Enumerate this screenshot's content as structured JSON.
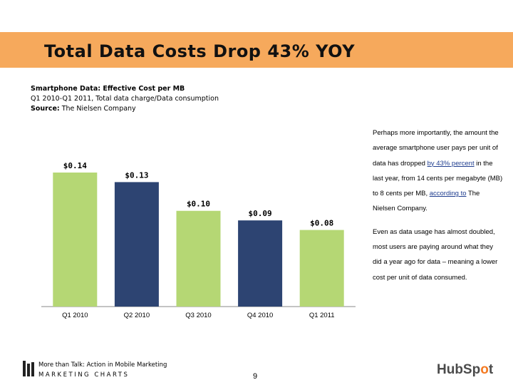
{
  "slide": {
    "title": "Total Data Costs Drop 43% YOY",
    "page_number": "9"
  },
  "meta": {
    "heading": "Smartphone Data: Effective Cost per MB",
    "subheading": "Q1 2010-Q1 2011, Total data charge/Data consumption",
    "source_label": "Source:",
    "source_value": "The Nielsen Company"
  },
  "chart_data": {
    "type": "bar",
    "title": "",
    "xlabel": "",
    "ylabel": "",
    "categories": [
      "Q1 2010",
      "Q2 2010",
      "Q3 2010",
      "Q4 2010",
      "Q1 2011"
    ],
    "values": [
      0.14,
      0.13,
      0.1,
      0.09,
      0.08
    ],
    "data_labels": [
      "$0.14",
      "$0.13",
      "$0.10",
      "$0.09",
      "$0.08"
    ],
    "bar_colors": [
      "#b5d774",
      "#2d4472",
      "#b5d774",
      "#2d4472",
      "#b5d774"
    ],
    "ylim": [
      0,
      0.14
    ],
    "grid": false,
    "legend": "none"
  },
  "side_text": {
    "p1_a": "Perhaps more importantly, the amount the average smartphone user pays per unit of data has dropped ",
    "p1_link1": "by 43% percent",
    "p1_b": " in the last year, from 14 cents per megabyte (MB) to 8 cents per MB, ",
    "p1_link2": "according to",
    "p1_c": " The Nielsen Company.",
    "p2": "Even as data usage has almost doubled, most users are paying around what they did a year ago for data – meaning a lower cost per unit of data consumed."
  },
  "footer": {
    "line1": "More than Talk: Action in Mobile Marketing",
    "line2": "MARKETING CHARTS",
    "brand_a": "HubSp",
    "brand_o": "o",
    "brand_b": "t"
  },
  "colors": {
    "title_band": "#f6a95c",
    "green": "#b5d774",
    "navy": "#2d4472",
    "link": "#1f3d8f",
    "brand_accent": "#f47a22"
  }
}
